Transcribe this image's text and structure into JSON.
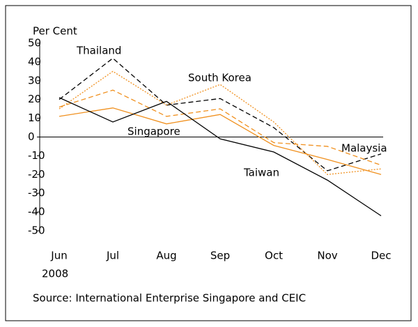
{
  "chart_data": {
    "type": "line",
    "y_label": "Per Cent",
    "year_label": "2008",
    "source": "Source: International Enterprise Singapore and CEIC",
    "categories": [
      "Jun",
      "Jul",
      "Aug",
      "Sep",
      "Oct",
      "Nov",
      "Dec"
    ],
    "ylim": [
      -50,
      50
    ],
    "yticks": [
      50,
      40,
      30,
      20,
      10,
      0,
      -10,
      -20,
      -30,
      -40,
      -50
    ],
    "series": [
      {
        "name": "Thailand",
        "color": "#000000",
        "dash": "dashed",
        "values": [
          20,
          42,
          17,
          20.5,
          5,
          -18,
          -9
        ]
      },
      {
        "name": "South Korea",
        "color": "#f0901e",
        "dash": "dotted",
        "values": [
          15,
          35,
          17,
          28,
          8,
          -20,
          -17
        ]
      },
      {
        "name": "Singapore",
        "color": "#f0901e",
        "dash": "solid",
        "values": [
          11,
          15.5,
          7,
          12,
          -4.5,
          -12,
          -20
        ]
      },
      {
        "name": "Malaysia",
        "color": "#f0901e",
        "dash": "dashed",
        "values": [
          16,
          25,
          11,
          15,
          -3,
          -5,
          -15
        ]
      },
      {
        "name": "Taiwan",
        "color": "#000000",
        "dash": "solid",
        "values": [
          21,
          8,
          19,
          -1,
          -8,
          -23,
          -42
        ]
      }
    ]
  }
}
